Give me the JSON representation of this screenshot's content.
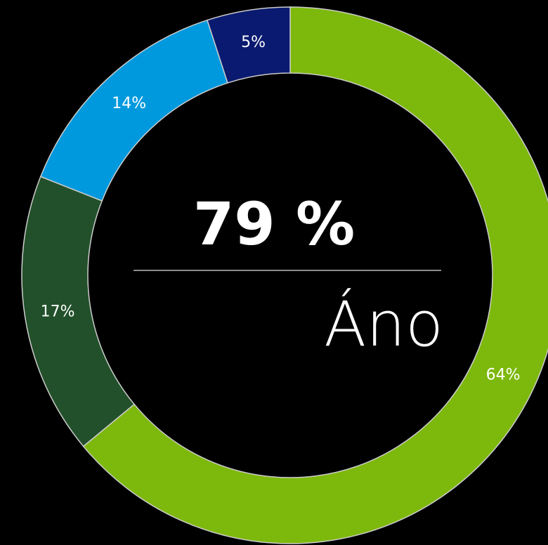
{
  "chart_data": {
    "type": "donut",
    "categories": [
      null,
      null,
      null,
      null
    ],
    "values": [
      64,
      17,
      14,
      5
    ],
    "value_labels": [
      "64%",
      "17%",
      "14%",
      "5%"
    ],
    "colors": [
      "#7db80c",
      "#22502a",
      "#0099dd",
      "#0a1a70"
    ],
    "center_value": "79 %",
    "center_label": "Áno"
  }
}
